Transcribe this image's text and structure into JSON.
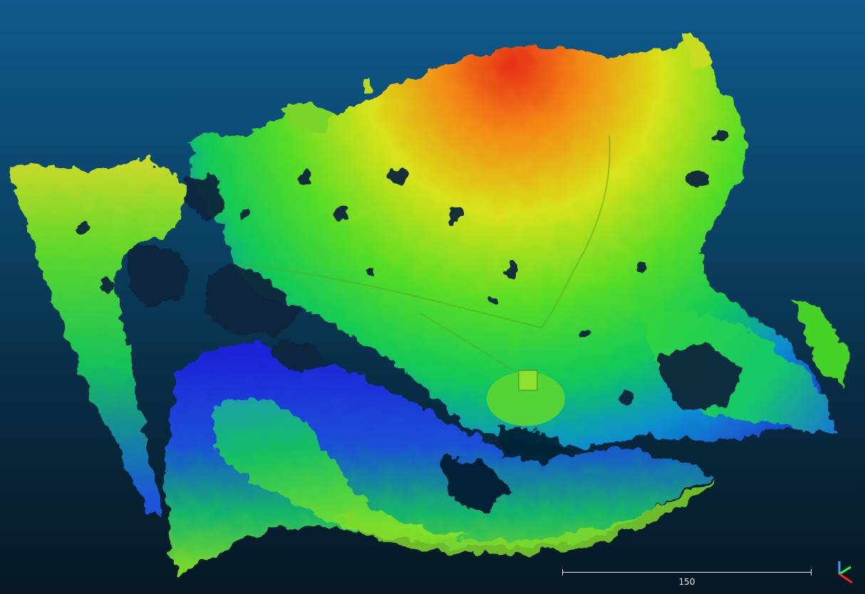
{
  "view": {
    "background_top": "#0f5a8c",
    "background_bottom": "#061823",
    "colormap": [
      "#1a1ad8",
      "#0a8cff",
      "#13d16a",
      "#7fe02a",
      "#e8e020",
      "#ff7a10",
      "#e83018"
    ]
  },
  "scale_bar": {
    "label": "150"
  },
  "axis_triad": {
    "x_color": "#ff2020",
    "y_color": "#20ff40",
    "z_color": "#30a0ff"
  }
}
